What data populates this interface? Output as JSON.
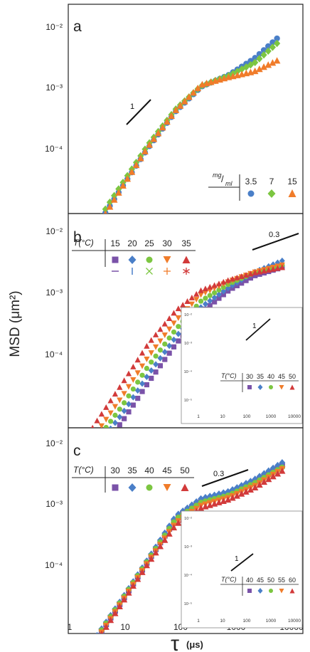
{
  "figure": {
    "ylabel": "MSD (μm²)",
    "xlabel_symbol": "τ",
    "xlabel_unit": "(μs)",
    "x_ticks": [
      "1",
      "10",
      "100",
      "1000",
      "10000"
    ]
  },
  "colors": {
    "blue": "#4a7fc8",
    "green": "#7cc641",
    "orange": "#f07c2a",
    "red": "#d23a3a",
    "purple": "#7a52a8"
  },
  "chart_data": [
    {
      "panel": "a",
      "type": "scatter",
      "xscale": "log",
      "yscale": "log",
      "xlim": [
        1,
        15000
      ],
      "ylim": [
        1e-05,
        0.02
      ],
      "y_ticks": [
        "10⁻²",
        "10⁻³",
        "10⁻⁴"
      ],
      "slope_label": "1",
      "legend_header": "mg/ml",
      "legend_entries": [
        "3.5",
        "7",
        "15"
      ],
      "series": [
        {
          "name": "3.5",
          "color": "blue",
          "marker": "circle",
          "x": [
            1.5,
            2,
            3,
            5,
            10,
            30,
            100,
            300,
            1000,
            3000,
            8000
          ],
          "y": [
            1.2e-05,
            2.2e-05,
            3.5e-05,
            6.5e-05,
            0.00014,
            0.00046,
            0.00145,
            0.0031,
            0.0045,
            0.0075,
            0.014
          ]
        },
        {
          "name": "7",
          "color": "green",
          "marker": "diamond",
          "x": [
            1.5,
            2,
            3,
            5,
            10,
            30,
            100,
            300,
            1000,
            3000,
            8000
          ],
          "y": [
            1.5e-05,
            2.5e-05,
            3.9e-05,
            7.3e-05,
            0.000155,
            0.00051,
            0.00155,
            0.0032,
            0.0044,
            0.0065,
            0.012
          ]
        },
        {
          "name": "15",
          "color": "orange",
          "marker": "triangle",
          "x": [
            1.5,
            2,
            3,
            5,
            10,
            30,
            100,
            300,
            1000,
            3000,
            8000
          ],
          "y": [
            1.1e-05,
            2e-05,
            3.4e-05,
            6.3e-05,
            0.00014,
            0.00048,
            0.0015,
            0.0033,
            0.0042,
            0.005,
            0.007
          ]
        }
      ]
    },
    {
      "panel": "b",
      "type": "scatter",
      "xscale": "log",
      "yscale": "log",
      "xlim": [
        1,
        15000
      ],
      "ylim": [
        1e-05,
        0.02
      ],
      "y_ticks": [
        "10⁻²",
        "10⁻³",
        "10⁻⁴"
      ],
      "slope_label": "0.3",
      "legend_header": "T(°C)",
      "legend_entries": [
        "15",
        "20",
        "25",
        "30",
        "35"
      ],
      "series": [
        {
          "name": "15",
          "color": "purple",
          "marker": "square",
          "x": [
            1.5,
            3,
            10,
            30,
            100,
            300,
            1000,
            3000,
            10000
          ],
          "y": [
            1e-05,
            1.8e-05,
            5.5e-05,
            0.00018,
            0.0006,
            0.0016,
            0.0032,
            0.005,
            0.0065
          ]
        },
        {
          "name": "20",
          "color": "blue",
          "marker": "diamond",
          "x": [
            1.5,
            3,
            10,
            30,
            100,
            300,
            1000,
            3000,
            10000
          ],
          "y": [
            1.3e-05,
            2.3e-05,
            7e-05,
            0.00023,
            0.00075,
            0.0019,
            0.0035,
            0.0056,
            0.008
          ]
        },
        {
          "name": "25",
          "color": "green",
          "marker": "circle",
          "x": [
            1.5,
            3,
            10,
            30,
            100,
            300,
            1000,
            3000,
            10000
          ],
          "y": [
            1.5e-05,
            2.8e-05,
            9e-05,
            0.0003,
            0.00095,
            0.0023,
            0.0039,
            0.0055,
            0.007
          ]
        },
        {
          "name": "30",
          "color": "orange",
          "marker": "triangle-down",
          "x": [
            1.5,
            3,
            10,
            30,
            100,
            300,
            1000,
            3000,
            10000
          ],
          "y": [
            1.8e-05,
            3.5e-05,
            0.00012,
            0.0004,
            0.00125,
            0.0028,
            0.0042,
            0.0056,
            0.007
          ]
        },
        {
          "name": "35",
          "color": "red",
          "marker": "triangle",
          "x": [
            1.5,
            3,
            10,
            30,
            100,
            300,
            1000,
            3000,
            10000
          ],
          "y": [
            2.2e-05,
            5e-05,
            0.00018,
            0.0006,
            0.0017,
            0.0032,
            0.0044,
            0.0055,
            0.0065
          ]
        }
      ]
    },
    {
      "panel": "b-inset",
      "type": "scatter",
      "xscale": "log",
      "yscale": "log",
      "xlim": [
        1,
        15000
      ],
      "ylim": [
        1e-05,
        0.02
      ],
      "x_ticks": [
        "1",
        "10",
        "100",
        "1000",
        "10000"
      ],
      "y_ticks": [
        "10⁻²",
        "10⁻³",
        "10⁻⁴",
        "10⁻⁵"
      ],
      "slope_label": "1",
      "legend_header": "T(°C)",
      "legend_entries": [
        "30",
        "35",
        "40",
        "45",
        "50"
      ],
      "series": [
        {
          "name": "30",
          "color": "purple",
          "marker": "square",
          "x": [
            2,
            10,
            100,
            1000,
            8000
          ],
          "y": [
            2e-05,
            0.00011,
            0.0011,
            0.009,
            0.02
          ]
        },
        {
          "name": "35",
          "color": "blue",
          "marker": "diamond",
          "x": [
            2,
            10,
            100,
            1000,
            8000
          ],
          "y": [
            2.1e-05,
            0.000115,
            0.00115,
            0.0093,
            0.02
          ]
        },
        {
          "name": "40",
          "color": "green",
          "marker": "circle",
          "x": [
            2,
            10,
            100,
            1000,
            8000
          ],
          "y": [
            2.2e-05,
            0.00012,
            0.0012,
            0.0096,
            0.02
          ]
        },
        {
          "name": "45",
          "color": "orange",
          "marker": "triangle-down",
          "x": [
            2,
            10,
            100,
            1000,
            8000
          ],
          "y": [
            2.3e-05,
            0.000125,
            0.00125,
            0.0099,
            0.02
          ]
        },
        {
          "name": "50",
          "color": "red",
          "marker": "triangle",
          "x": [
            2,
            10,
            100,
            1000,
            8000
          ],
          "y": [
            2.4e-05,
            0.00013,
            0.0013,
            0.01,
            0.02
          ]
        }
      ]
    },
    {
      "panel": "c",
      "type": "scatter",
      "xscale": "log",
      "yscale": "log",
      "xlim": [
        1,
        15000
      ],
      "ylim": [
        1e-05,
        0.02
      ],
      "y_ticks": [
        "10⁻²",
        "10⁻³",
        "10⁻⁴"
      ],
      "slope_label": "0.3",
      "legend_header": "T(°C)",
      "legend_entries": [
        "30",
        "35",
        "40",
        "45",
        "50"
      ],
      "series": [
        {
          "name": "30",
          "color": "purple",
          "marker": "square",
          "x": [
            1.5,
            3,
            10,
            30,
            100,
            300,
            1000,
            3000,
            10000
          ],
          "y": [
            2e-05,
            4.3e-05,
            0.000155,
            0.00052,
            0.0019,
            0.0033,
            0.0042,
            0.006,
            0.01
          ]
        },
        {
          "name": "35",
          "color": "blue",
          "marker": "diamond",
          "x": [
            1.5,
            3,
            10,
            30,
            100,
            300,
            1000,
            3000,
            10000
          ],
          "y": [
            2.2e-05,
            4.6e-05,
            0.000165,
            0.00055,
            0.0021,
            0.0036,
            0.0045,
            0.0065,
            0.011
          ]
        },
        {
          "name": "40",
          "color": "green",
          "marker": "circle",
          "x": [
            1.5,
            3,
            10,
            30,
            100,
            300,
            1000,
            3000,
            10000
          ],
          "y": [
            2.1e-05,
            4.4e-05,
            0.00016,
            0.00053,
            0.0019,
            0.0032,
            0.004,
            0.0058,
            0.0095
          ]
        },
        {
          "name": "45",
          "color": "orange",
          "marker": "triangle-down",
          "x": [
            1.5,
            3,
            10,
            30,
            100,
            300,
            1000,
            3000,
            10000
          ],
          "y": [
            1.9e-05,
            4.1e-05,
            0.00015,
            0.0005,
            0.0017,
            0.0029,
            0.0037,
            0.0053,
            0.009
          ]
        },
        {
          "name": "50",
          "color": "red",
          "marker": "triangle",
          "x": [
            1.5,
            3,
            10,
            30,
            100,
            300,
            1000,
            3000,
            10000
          ],
          "y": [
            1.8e-05,
            3.9e-05,
            0.000145,
            0.00048,
            0.0016,
            0.0027,
            0.0035,
            0.005,
            0.0085
          ]
        }
      ]
    },
    {
      "panel": "c-inset",
      "type": "scatter",
      "xscale": "log",
      "yscale": "log",
      "xlim": [
        1,
        15000
      ],
      "ylim": [
        1e-05,
        0.02
      ],
      "x_ticks": [
        "1",
        "10",
        "100",
        "1000",
        "10000"
      ],
      "y_ticks": [
        "10⁻²",
        "10⁻³",
        "10⁻⁴",
        "10⁻⁵"
      ],
      "slope_label": "1",
      "legend_header": "T(°C)",
      "legend_entries": [
        "40",
        "45",
        "50",
        "55",
        "60"
      ],
      "series": [
        {
          "name": "40",
          "color": "purple",
          "marker": "square",
          "x": [
            2,
            10,
            100,
            1000,
            8000
          ],
          "y": [
            1.3e-05,
            7e-05,
            0.0006,
            0.0026,
            0.015
          ]
        },
        {
          "name": "45",
          "color": "blue",
          "marker": "diamond",
          "x": [
            2,
            10,
            100,
            1000,
            8000
          ],
          "y": [
            1.35e-05,
            7.3e-05,
            0.00063,
            0.0029,
            0.016
          ]
        },
        {
          "name": "50",
          "color": "green",
          "marker": "circle",
          "x": [
            2,
            10,
            100,
            1000,
            8000
          ],
          "y": [
            1.4e-05,
            7.6e-05,
            0.00066,
            0.0032,
            0.017
          ]
        },
        {
          "name": "55",
          "color": "orange",
          "marker": "triangle-down",
          "x": [
            2,
            10,
            100,
            1000,
            8000
          ],
          "y": [
            1.45e-05,
            7.9e-05,
            0.00069,
            0.0035,
            0.018
          ]
        },
        {
          "name": "60",
          "color": "red",
          "marker": "triangle",
          "x": [
            2,
            10,
            100,
            1000,
            8000
          ],
          "y": [
            1.5e-05,
            8.2e-05,
            0.00072,
            0.0038,
            0.019
          ]
        }
      ]
    }
  ]
}
